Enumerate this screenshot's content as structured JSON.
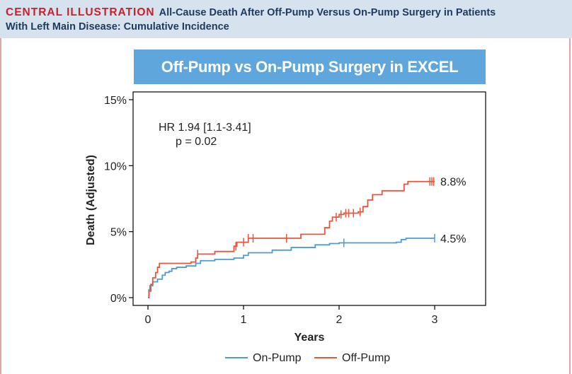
{
  "header": {
    "kicker": "CENTRAL ILLUSTRATION",
    "title_line1": "All-Cause Death After Off-Pump Versus On-Pump Surgery in Patients",
    "title_line2": "With Left Main Disease: Cumulative Incidence"
  },
  "chart_data": {
    "type": "line",
    "title": "Off-Pump vs On-Pump Surgery in EXCEL",
    "xlabel": "Years",
    "ylabel": "Death (Adjusted)",
    "xlim": [
      0,
      3.5
    ],
    "ylim": [
      0,
      15
    ],
    "x_ticks": [
      0,
      1,
      2,
      3
    ],
    "x_tick_labels": [
      "0",
      "1",
      "2",
      "3"
    ],
    "y_ticks": [
      0,
      5,
      10,
      15
    ],
    "y_tick_labels": [
      "0%",
      "5%",
      "10%",
      "15%"
    ],
    "grid": false,
    "legend_position": "bottom",
    "annotation": {
      "line1": "HR 1.94 [1.1-3.41]",
      "line2": "p = 0.02"
    },
    "series": [
      {
        "name": "On-Pump",
        "color": "#4f9bd0",
        "end_label": "4.5%",
        "points": [
          [
            0,
            0
          ],
          [
            0.01,
            0.6
          ],
          [
            0.02,
            0.9
          ],
          [
            0.05,
            1.2
          ],
          [
            0.1,
            1.4
          ],
          [
            0.15,
            1.7
          ],
          [
            0.18,
            1.9
          ],
          [
            0.22,
            2.0
          ],
          [
            0.25,
            2.2
          ],
          [
            0.3,
            2.3
          ],
          [
            0.4,
            2.4
          ],
          [
            0.5,
            2.6
          ],
          [
            0.55,
            2.8
          ],
          [
            0.7,
            2.9
          ],
          [
            0.9,
            3.0
          ],
          [
            1.0,
            3.2
          ],
          [
            1.05,
            3.4
          ],
          [
            1.3,
            3.6
          ],
          [
            1.5,
            3.8
          ],
          [
            1.75,
            4.0
          ],
          [
            1.9,
            4.1
          ],
          [
            2.0,
            4.15
          ],
          [
            2.6,
            4.2
          ],
          [
            2.65,
            4.4
          ],
          [
            2.7,
            4.5
          ],
          [
            3.0,
            4.5
          ]
        ],
        "censor_x": [
          2.05,
          3.0
        ]
      },
      {
        "name": "Off-Pump",
        "color": "#e8553a",
        "end_label": "8.8%",
        "points": [
          [
            0,
            0
          ],
          [
            0.01,
            0.5
          ],
          [
            0.03,
            1.0
          ],
          [
            0.05,
            1.5
          ],
          [
            0.08,
            1.9
          ],
          [
            0.1,
            2.3
          ],
          [
            0.12,
            2.6
          ],
          [
            0.45,
            2.7
          ],
          [
            0.5,
            3.0
          ],
          [
            0.52,
            3.3
          ],
          [
            0.7,
            3.5
          ],
          [
            0.9,
            3.9
          ],
          [
            0.93,
            4.2
          ],
          [
            1.05,
            4.5
          ],
          [
            1.6,
            4.8
          ],
          [
            1.85,
            5.3
          ],
          [
            1.9,
            5.8
          ],
          [
            1.93,
            6.1
          ],
          [
            2.0,
            6.3
          ],
          [
            2.05,
            6.4
          ],
          [
            2.2,
            6.5
          ],
          [
            2.25,
            6.9
          ],
          [
            2.3,
            7.4
          ],
          [
            2.35,
            7.8
          ],
          [
            2.45,
            8.1
          ],
          [
            2.68,
            8.6
          ],
          [
            2.72,
            8.8
          ],
          [
            3.0,
            8.8
          ]
        ],
        "censor_x": [
          0.52,
          0.92,
          1.0,
          1.05,
          1.1,
          1.45,
          1.97,
          2.02,
          2.07,
          2.1,
          2.15,
          2.22,
          2.95,
          2.97,
          2.99
        ]
      }
    ]
  }
}
